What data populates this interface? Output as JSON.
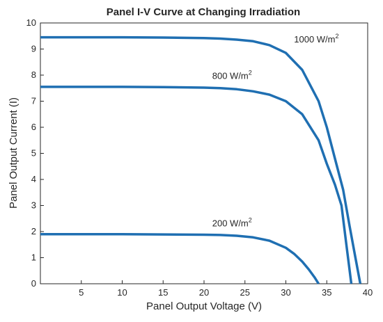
{
  "chart_data": {
    "type": "line",
    "title": "Panel I-V Curve at Changing Irradiation",
    "xlabel": "Panel Output Voltage (V)",
    "ylabel": "Panel Output Current (I)",
    "xlim": [
      0,
      40
    ],
    "ylim": [
      0,
      10
    ],
    "xticks": [
      5,
      10,
      15,
      20,
      25,
      30,
      35,
      40
    ],
    "yticks": [
      0,
      1,
      2,
      3,
      4,
      5,
      6,
      7,
      8,
      9,
      10
    ],
    "grid": false,
    "legend": "none",
    "line_color": "#1f6fb2",
    "series": [
      {
        "x": [
          0,
          5,
          10,
          15,
          20,
          22,
          24,
          26,
          28,
          30,
          32,
          34,
          35,
          36,
          37,
          37.8,
          38.5,
          39.1
        ],
        "y": [
          9.45,
          9.45,
          9.45,
          9.44,
          9.42,
          9.4,
          9.36,
          9.3,
          9.15,
          8.85,
          8.2,
          7.0,
          6.0,
          4.8,
          3.6,
          2.2,
          1.0,
          0
        ]
      },
      {
        "x": [
          0,
          5,
          10,
          15,
          20,
          22,
          24,
          26,
          28,
          30,
          32,
          34,
          35,
          36,
          36.8,
          37.4,
          38.0
        ],
        "y": [
          7.55,
          7.55,
          7.55,
          7.54,
          7.52,
          7.5,
          7.46,
          7.38,
          7.25,
          7.0,
          6.5,
          5.5,
          4.6,
          3.8,
          3.0,
          1.5,
          0
        ]
      },
      {
        "x": [
          0,
          5,
          10,
          15,
          20,
          22,
          24,
          26,
          28,
          30,
          31,
          32,
          32.8,
          33.5,
          34.0
        ],
        "y": [
          1.9,
          1.9,
          1.9,
          1.89,
          1.88,
          1.87,
          1.84,
          1.78,
          1.65,
          1.38,
          1.15,
          0.85,
          0.55,
          0.25,
          0
        ]
      }
    ],
    "annotations": [
      {
        "text": "1000 W/m",
        "sup": "2",
        "x": 31.0,
        "y": 9.25
      },
      {
        "text": "800 W/m",
        "sup": "2",
        "x": 21.0,
        "y": 7.85
      },
      {
        "text": "200 W/m",
        "sup": "2",
        "x": 21.0,
        "y": 2.2
      }
    ]
  }
}
